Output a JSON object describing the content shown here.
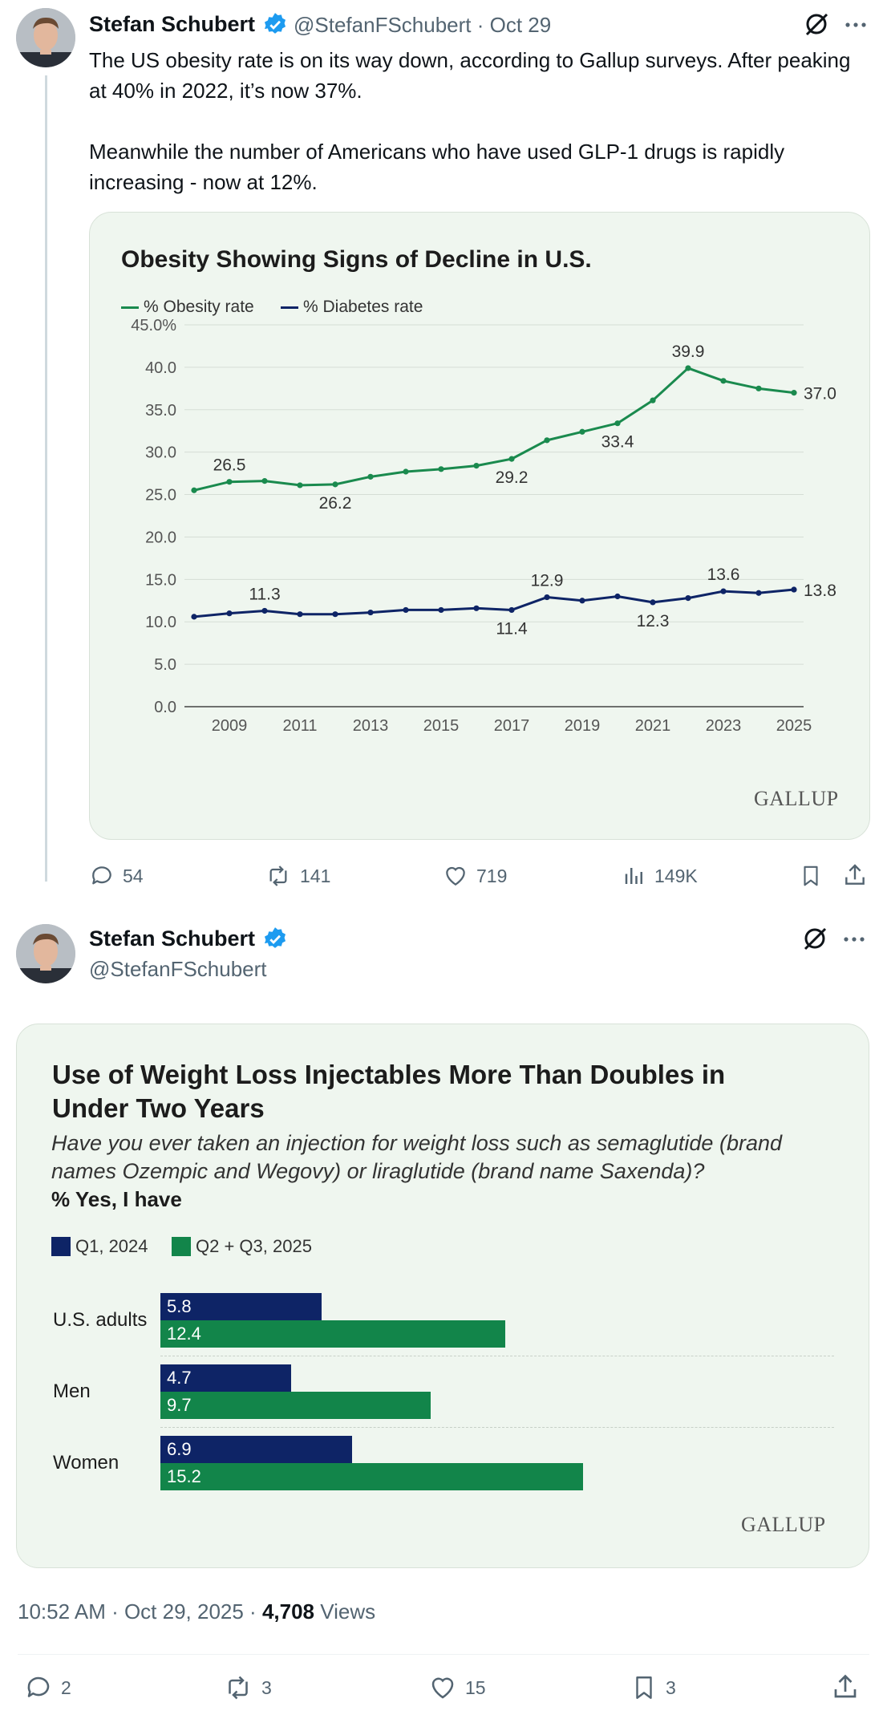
{
  "tweet1": {
    "author": "Stefan Schubert",
    "handle_date": "@StefanFSchubert · Oct 29",
    "paragraph1": "The US obesity rate is on its way down, according to Gallup surveys. After peaking at 40% in 2022, it’s now 37%.",
    "paragraph2": "Meanwhile the number of Americans who have used GLP-1 drugs is rapidly increasing - now at 12%.",
    "actions": {
      "replies": "54",
      "reposts": "141",
      "likes": "719",
      "views": "149K"
    }
  },
  "tweet2": {
    "author": "Stefan Schubert",
    "handle": "@StefanFSchubert",
    "timestamp": "10:52 AM · Oct 29, 2025 · ",
    "views_count": "4,708",
    "views_label": " Views",
    "actions": {
      "replies": "2",
      "reposts": "3",
      "likes": "15",
      "bookmarks": "3"
    }
  },
  "icons": [
    "verified-badge-icon",
    "grok-icon",
    "more-icon",
    "reply-icon",
    "repost-icon",
    "like-icon",
    "views-icon",
    "bookmark-icon",
    "share-icon"
  ],
  "colors": {
    "obesity": "#1a8a4e",
    "diabetes": "#0e2466",
    "q1": "#0e2466",
    "q23": "#12854a",
    "card_bg": "#eff6ef"
  },
  "chart_data": [
    {
      "type": "line",
      "title": "Obesity Showing Signs of Decline in U.S.",
      "source": "GALLUP",
      "x": [
        2008,
        2009,
        2010,
        2011,
        2012,
        2013,
        2014,
        2015,
        2016,
        2017,
        2018,
        2019,
        2020,
        2021,
        2022,
        2023,
        2024,
        2025
      ],
      "xticks": [
        "2009",
        "2011",
        "2013",
        "2015",
        "2017",
        "2019",
        "2021",
        "2023",
        "2025"
      ],
      "yticks": [
        "45.0%",
        "40.0",
        "35.0",
        "30.0",
        "25.0",
        "20.0",
        "15.0",
        "10.0",
        "5.0",
        "0.0"
      ],
      "ylim": [
        0,
        45
      ],
      "grid": true,
      "legend_position": "top-left",
      "series": [
        {
          "name": "% Obesity rate",
          "color": "#1a8a4e",
          "values": [
            25.5,
            26.5,
            26.6,
            26.1,
            26.2,
            27.1,
            27.7,
            28.0,
            28.4,
            29.2,
            31.4,
            32.4,
            33.4,
            36.1,
            39.9,
            38.4,
            37.5,
            37.0
          ],
          "labels": [
            {
              "x": 2009,
              "text": "26.5",
              "pos": "above"
            },
            {
              "x": 2012,
              "text": "26.2",
              "pos": "below"
            },
            {
              "x": 2017,
              "text": "29.2",
              "pos": "below"
            },
            {
              "x": 2020,
              "text": "33.4",
              "pos": "below"
            },
            {
              "x": 2022,
              "text": "39.9",
              "pos": "above"
            },
            {
              "x": 2025,
              "text": "37.0",
              "pos": "right"
            }
          ]
        },
        {
          "name": "% Diabetes rate",
          "color": "#0e2466",
          "values": [
            10.6,
            11.0,
            11.3,
            10.9,
            10.9,
            11.1,
            11.4,
            11.4,
            11.6,
            11.4,
            12.9,
            12.5,
            13.0,
            12.3,
            12.8,
            13.6,
            13.4,
            13.8
          ],
          "labels": [
            {
              "x": 2010,
              "text": "11.3",
              "pos": "above"
            },
            {
              "x": 2017,
              "text": "11.4",
              "pos": "below"
            },
            {
              "x": 2018,
              "text": "12.9",
              "pos": "above"
            },
            {
              "x": 2021,
              "text": "12.3",
              "pos": "below"
            },
            {
              "x": 2023,
              "text": "13.6",
              "pos": "above"
            },
            {
              "x": 2025,
              "text": "13.8",
              "pos": "right"
            }
          ]
        }
      ]
    },
    {
      "type": "bar",
      "orientation": "horizontal",
      "title": "Use of Weight Loss Injectables More Than Doubles in Under Two Years",
      "subtitle": "Have you ever taken an injection for weight loss such as semaglutide (brand names Ozempic and Wegovy) or liraglutide (brand name Saxenda)?",
      "measure": "% Yes, I have",
      "source": "GALLUP",
      "categories": [
        "U.S. adults",
        "Men",
        "Women"
      ],
      "series": [
        {
          "name": "Q1, 2024",
          "color": "#0e2466",
          "values": [
            5.8,
            4.7,
            6.9
          ]
        },
        {
          "name": "Q2 + Q3, 2025",
          "color": "#12854a",
          "values": [
            12.4,
            9.7,
            15.2
          ]
        }
      ],
      "xlim": [
        0,
        16
      ]
    }
  ]
}
